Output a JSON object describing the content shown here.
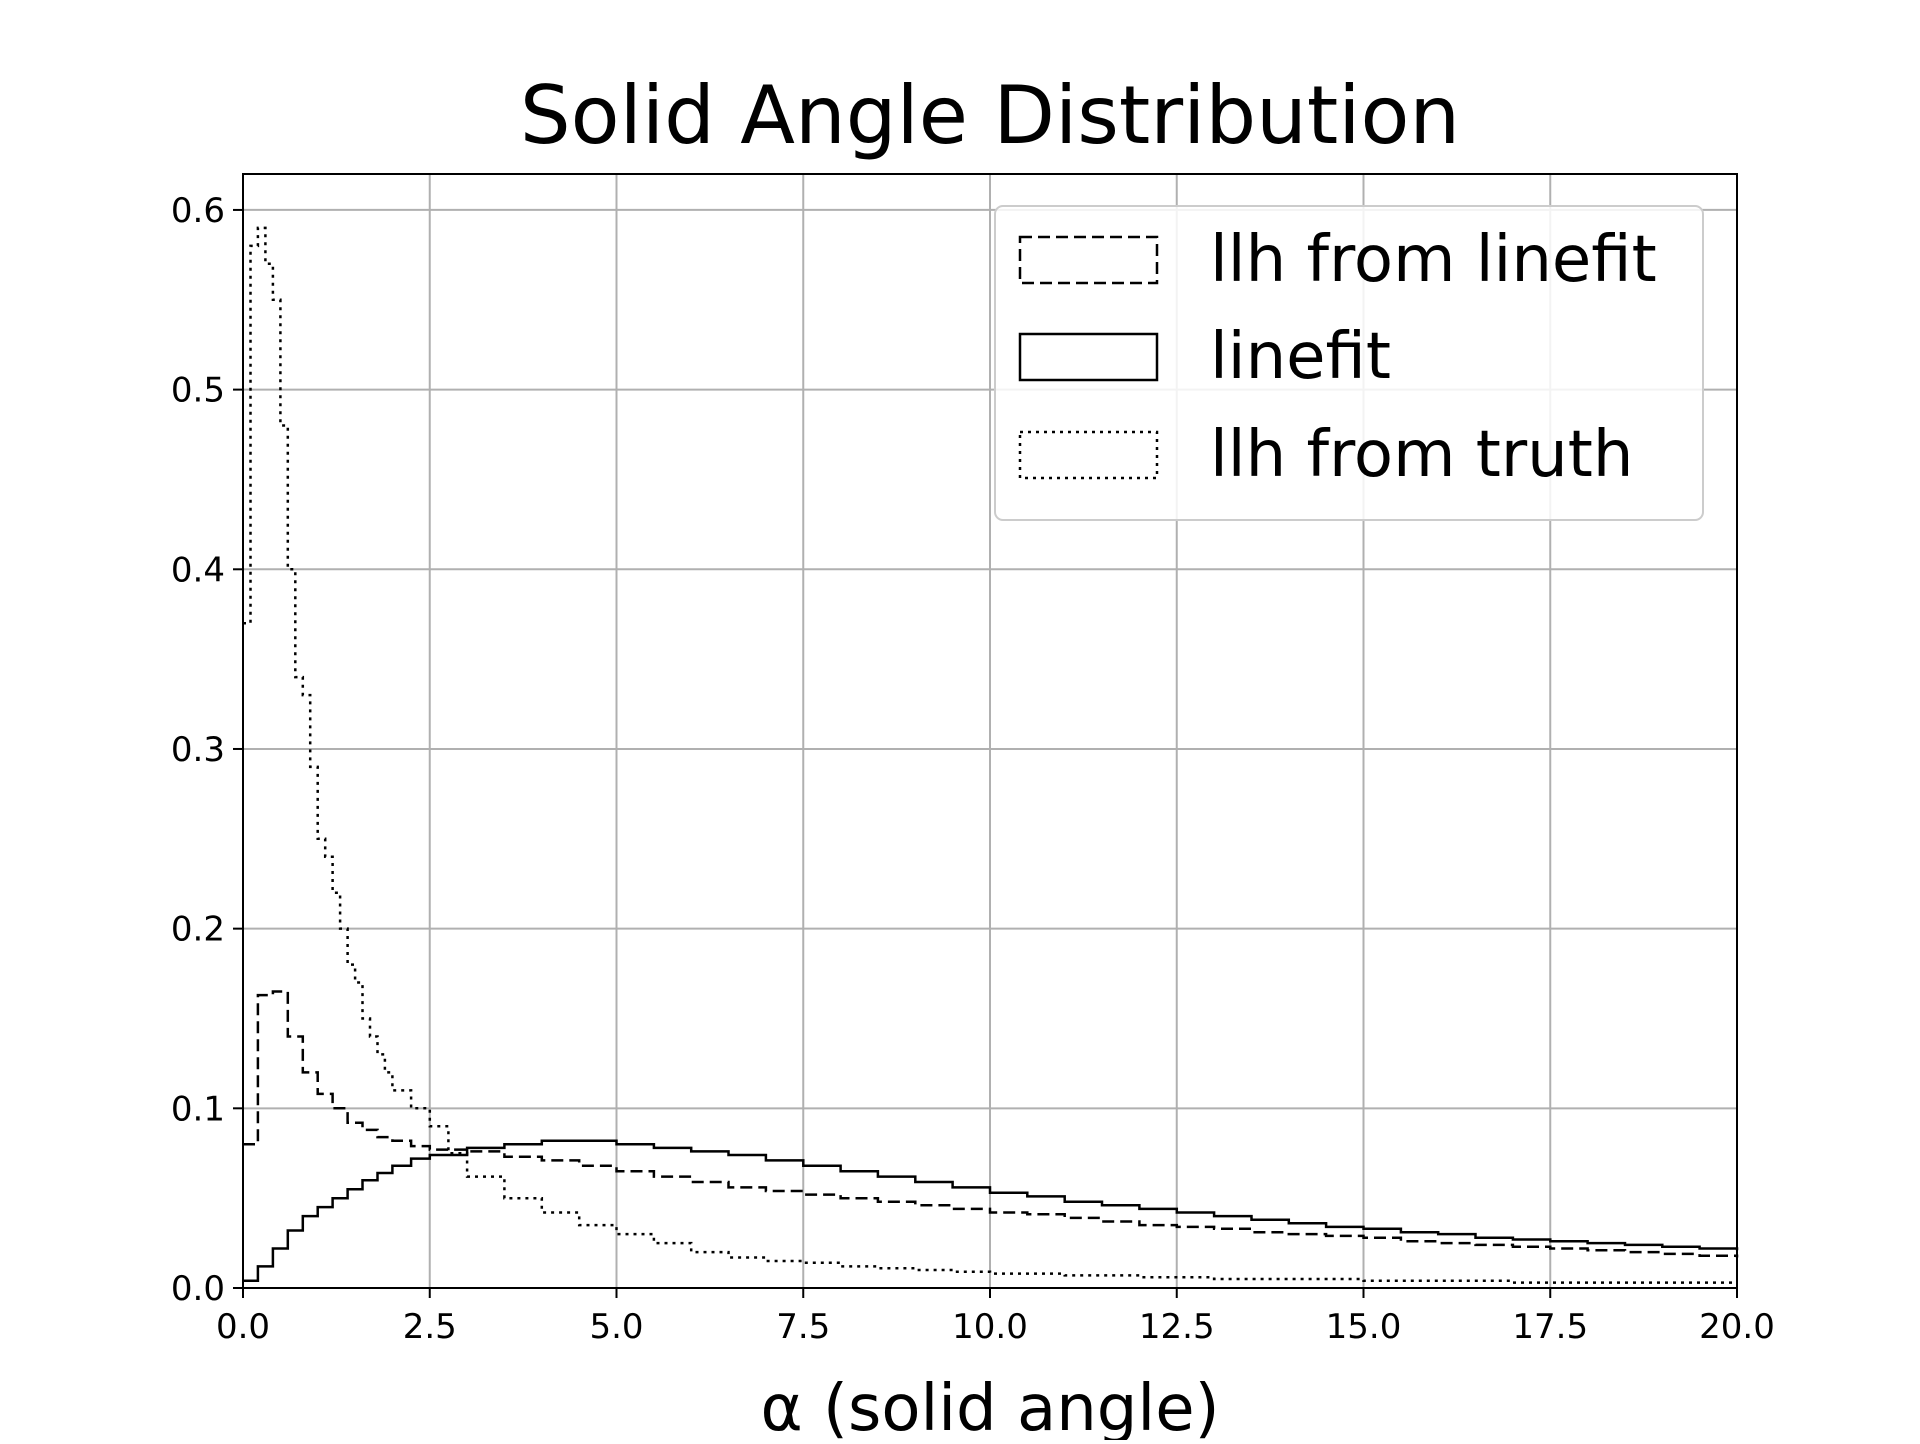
{
  "chart_data": {
    "type": "line",
    "title": "Solid Angle Distribution",
    "xlabel": "α (solid angle)",
    "ylabel": "",
    "xlim": [
      0,
      20
    ],
    "ylim": [
      0,
      0.62
    ],
    "xticks": [
      "0.0",
      "2.5",
      "5.0",
      "7.5",
      "10.0",
      "12.5",
      "15.0",
      "17.5",
      "20.0"
    ],
    "yticks": [
      "0.0",
      "0.1",
      "0.2",
      "0.3",
      "0.4",
      "0.5",
      "0.6"
    ],
    "grid": true,
    "legend_position": "top-right",
    "step_style": "histogram-step",
    "series": [
      {
        "name": "llh from linefit",
        "style": "dashed",
        "x": [
          0.0,
          0.2,
          0.4,
          0.6,
          0.8,
          1.0,
          1.2,
          1.4,
          1.6,
          1.8,
          2.0,
          2.25,
          2.5,
          3.0,
          3.5,
          4.0,
          4.5,
          5.0,
          5.5,
          6.0,
          6.5,
          7.0,
          7.5,
          8.0,
          8.5,
          9.0,
          9.5,
          10.0,
          10.5,
          11.0,
          11.5,
          12.0,
          12.5,
          13.0,
          13.5,
          14.0,
          14.5,
          15.0,
          15.5,
          16.0,
          16.5,
          17.0,
          17.5,
          18.0,
          18.5,
          19.0,
          19.5,
          20.0
        ],
        "y": [
          0.08,
          0.163,
          0.165,
          0.14,
          0.12,
          0.108,
          0.1,
          0.092,
          0.088,
          0.084,
          0.082,
          0.079,
          0.077,
          0.076,
          0.073,
          0.071,
          0.068,
          0.065,
          0.062,
          0.059,
          0.056,
          0.054,
          0.052,
          0.05,
          0.048,
          0.046,
          0.044,
          0.042,
          0.041,
          0.039,
          0.037,
          0.035,
          0.034,
          0.033,
          0.031,
          0.03,
          0.029,
          0.028,
          0.026,
          0.025,
          0.024,
          0.023,
          0.022,
          0.021,
          0.02,
          0.019,
          0.018,
          0.017
        ]
      },
      {
        "name": "linefit",
        "style": "solid",
        "x": [
          0.0,
          0.2,
          0.4,
          0.6,
          0.8,
          1.0,
          1.2,
          1.4,
          1.6,
          1.8,
          2.0,
          2.25,
          2.5,
          3.0,
          3.5,
          4.0,
          4.5,
          5.0,
          5.5,
          6.0,
          6.5,
          7.0,
          7.5,
          8.0,
          8.5,
          9.0,
          9.5,
          10.0,
          10.5,
          11.0,
          11.5,
          12.0,
          12.5,
          13.0,
          13.5,
          14.0,
          14.5,
          15.0,
          15.5,
          16.0,
          16.5,
          17.0,
          17.5,
          18.0,
          18.5,
          19.0,
          19.5,
          20.0
        ],
        "y": [
          0.004,
          0.012,
          0.022,
          0.032,
          0.04,
          0.045,
          0.05,
          0.055,
          0.06,
          0.064,
          0.068,
          0.072,
          0.074,
          0.078,
          0.08,
          0.082,
          0.082,
          0.08,
          0.078,
          0.076,
          0.074,
          0.071,
          0.068,
          0.065,
          0.062,
          0.059,
          0.056,
          0.053,
          0.051,
          0.048,
          0.046,
          0.044,
          0.042,
          0.04,
          0.038,
          0.036,
          0.034,
          0.033,
          0.031,
          0.03,
          0.028,
          0.027,
          0.026,
          0.025,
          0.024,
          0.023,
          0.022,
          0.021
        ]
      },
      {
        "name": "llh from truth",
        "style": "dotted",
        "x": [
          0.0,
          0.1,
          0.2,
          0.3,
          0.4,
          0.5,
          0.6,
          0.7,
          0.8,
          0.9,
          1.0,
          1.1,
          1.2,
          1.3,
          1.4,
          1.5,
          1.6,
          1.7,
          1.8,
          1.9,
          2.0,
          2.25,
          2.5,
          2.75,
          3.0,
          3.5,
          4.0,
          4.5,
          5.0,
          5.5,
          6.0,
          6.5,
          7.0,
          7.5,
          8.0,
          8.5,
          9.0,
          9.5,
          10.0,
          11.0,
          12.0,
          13.0,
          14.0,
          15.0,
          16.0,
          17.0,
          18.0,
          19.0,
          20.0
        ],
        "y": [
          0.37,
          0.58,
          0.59,
          0.57,
          0.55,
          0.48,
          0.4,
          0.34,
          0.33,
          0.29,
          0.25,
          0.24,
          0.22,
          0.2,
          0.18,
          0.17,
          0.15,
          0.14,
          0.13,
          0.12,
          0.11,
          0.1,
          0.09,
          0.075,
          0.062,
          0.05,
          0.042,
          0.035,
          0.03,
          0.025,
          0.02,
          0.017,
          0.015,
          0.014,
          0.012,
          0.011,
          0.01,
          0.009,
          0.008,
          0.007,
          0.006,
          0.005,
          0.005,
          0.004,
          0.004,
          0.003,
          0.003,
          0.003,
          0.003
        ]
      }
    ]
  }
}
